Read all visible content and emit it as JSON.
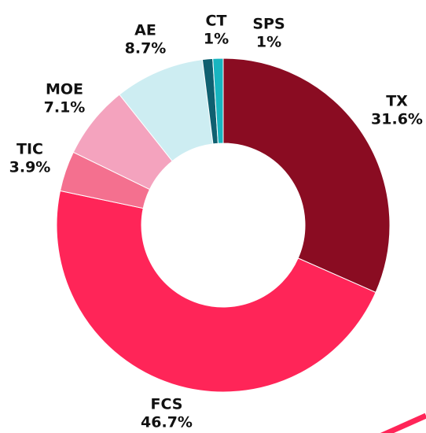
{
  "chart_data": {
    "type": "donut",
    "categories": [
      "TX",
      "FCS",
      "TIC",
      "MOE",
      "AE",
      "CT",
      "SPS"
    ],
    "values": [
      31.6,
      46.7,
      3.9,
      7.1,
      8.7,
      1,
      1
    ],
    "value_labels": [
      "31.6%",
      "46.7%",
      "3.9%",
      "7.1%",
      "8.7%",
      "1%",
      "1%"
    ],
    "colors": [
      "#8a0c22",
      "#ff2558",
      "#f4708f",
      "#f4a3be",
      "#cdedf2",
      "#0f6070",
      "#18b5c0"
    ]
  }
}
